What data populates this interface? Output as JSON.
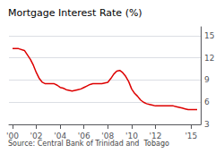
{
  "chart_data": {
    "type": "line",
    "title": "Mortgage Interest Rate (%)",
    "annotations": [
      "Source: Central Bank of Trinidad and  Tobago"
    ],
    "color": "#dd0000",
    "x": [
      2000.0,
      2000.25,
      2000.5,
      2001.0,
      2001.5,
      2001.75,
      2002.0,
      2002.25,
      2002.5,
      2002.75,
      2003.0,
      2003.25,
      2003.5,
      2003.75,
      2004.0,
      2004.25,
      2004.5,
      2004.75,
      2005.0,
      2005.25,
      2005.5,
      2005.75,
      2006.0,
      2006.25,
      2006.5,
      2006.75,
      2007.0,
      2007.25,
      2007.5,
      2007.75,
      2008.0,
      2008.25,
      2008.5,
      2008.75,
      2009.0,
      2009.25,
      2009.5,
      2009.75,
      2010.0,
      2010.25,
      2010.5,
      2010.75,
      2011.0,
      2011.25,
      2011.5,
      2011.75,
      2012.0,
      2012.25,
      2012.5,
      2012.75,
      2013.0,
      2013.25,
      2013.5,
      2013.75,
      2014.0,
      2014.25,
      2014.5,
      2014.75,
      2015.0,
      2015.25,
      2015.5
    ],
    "values": [
      13.25,
      13.25,
      13.25,
      13.0,
      11.8,
      11.0,
      10.0,
      9.2,
      8.7,
      8.5,
      8.5,
      8.5,
      8.5,
      8.3,
      8.0,
      7.9,
      7.7,
      7.6,
      7.5,
      7.6,
      7.7,
      7.8,
      8.0,
      8.2,
      8.4,
      8.5,
      8.5,
      8.5,
      8.5,
      8.6,
      8.7,
      9.2,
      9.8,
      10.2,
      10.3,
      10.0,
      9.5,
      8.8,
      7.8,
      7.2,
      6.8,
      6.3,
      6.0,
      5.8,
      5.7,
      5.6,
      5.5,
      5.5,
      5.5,
      5.5,
      5.5,
      5.5,
      5.5,
      5.4,
      5.3,
      5.2,
      5.1,
      5.0,
      5.0,
      5.0,
      5.0
    ],
    "xlim": [
      1999.7,
      2015.8
    ],
    "xticks": [
      {
        "value": 2000,
        "label": "'00"
      },
      {
        "value": 2002,
        "label": "'02"
      },
      {
        "value": 2004,
        "label": "'04"
      },
      {
        "value": 2006,
        "label": "'06"
      },
      {
        "value": 2008,
        "label": "'08"
      },
      {
        "value": 2010,
        "label": "'10"
      },
      {
        "value": 2012,
        "label": "'12"
      },
      {
        "value": 2015,
        "label": "'15"
      }
    ],
    "ylim": [
      3,
      16.2
    ],
    "yticks": [
      3,
      6,
      9,
      12,
      15
    ],
    "grid": true
  }
}
